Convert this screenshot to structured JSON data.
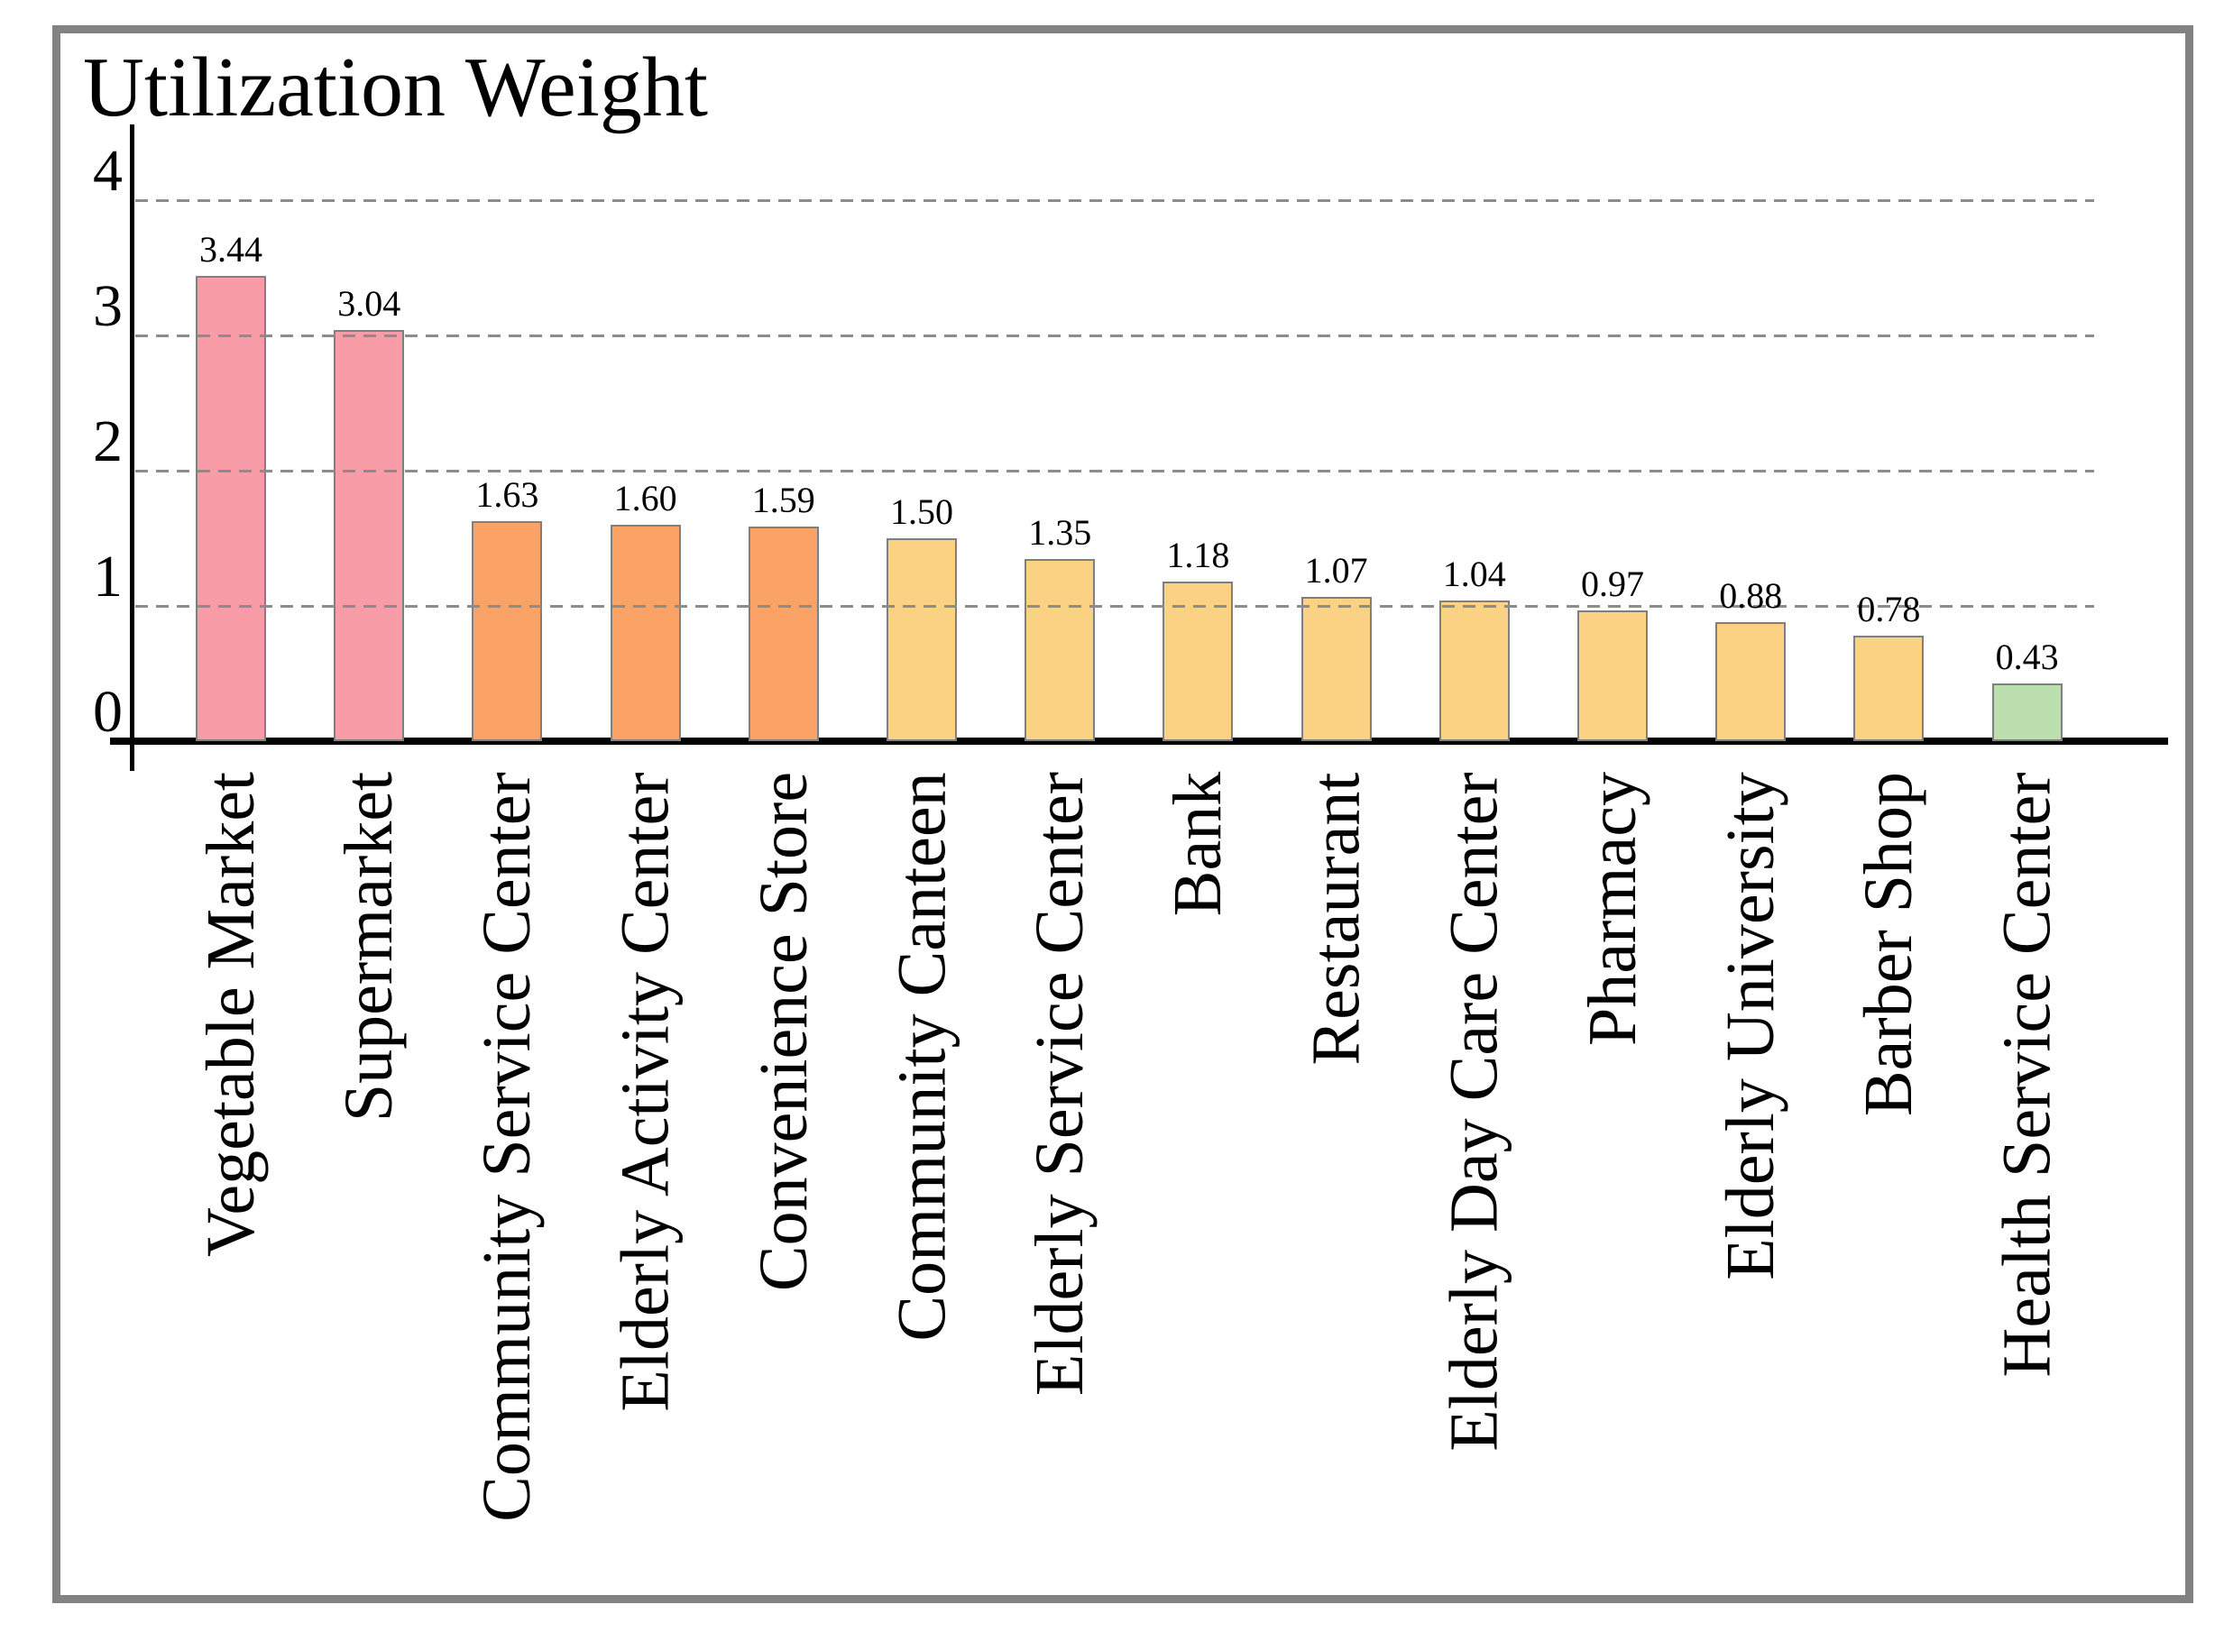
{
  "chart_data": {
    "type": "bar",
    "title": "Utilization Weight",
    "xlabel": "",
    "ylabel": "",
    "categories": [
      "Vegetable Market",
      "Supermarket",
      "Community Service Center",
      "Elderly Activity Center",
      "Convenience Store",
      "Community Canteen",
      "Elderly Service Center",
      "Bank",
      "Restaurant",
      "Elderly Day Care Center",
      "Pharmacy",
      "Elderly University",
      "Barber Shop",
      "Health Service Center"
    ],
    "values": [
      3.44,
      3.04,
      1.63,
      1.6,
      1.59,
      1.5,
      1.35,
      1.18,
      1.07,
      1.04,
      0.97,
      0.88,
      0.78,
      0.43
    ],
    "value_labels": [
      "3.44",
      "3.04",
      "1.63",
      "1.60",
      "1.59",
      "1.50",
      "1.35",
      "1.18",
      "1.07",
      "1.04",
      "0.97",
      "0.88",
      "0.78",
      "0.43"
    ],
    "y_tick_labels": [
      "0",
      "1",
      "2",
      "3",
      "4"
    ],
    "y_tick_values": [
      0,
      1,
      2,
      3,
      4
    ],
    "ylim": [
      0,
      4.55
    ],
    "gridline_values": [
      1,
      2,
      3,
      4
    ],
    "grid_style": "dashed-horizontal",
    "legend": "none",
    "bar_color_keys": [
      "pink",
      "pink",
      "orange",
      "orange",
      "orange",
      "yellow",
      "yellow",
      "yellow",
      "yellow",
      "yellow",
      "yellow",
      "yellow",
      "yellow",
      "green"
    ],
    "colors": {
      "pink": "#F89DA8",
      "orange": "#FBA266",
      "yellow": "#FBD283",
      "green": "#BBDFAE",
      "bar_border": "#7F7F7F",
      "grid": "#8C8C8C",
      "axis": "#000000",
      "frame_border": "#828282",
      "background": "#FFFFFF",
      "text": "#000000"
    }
  }
}
